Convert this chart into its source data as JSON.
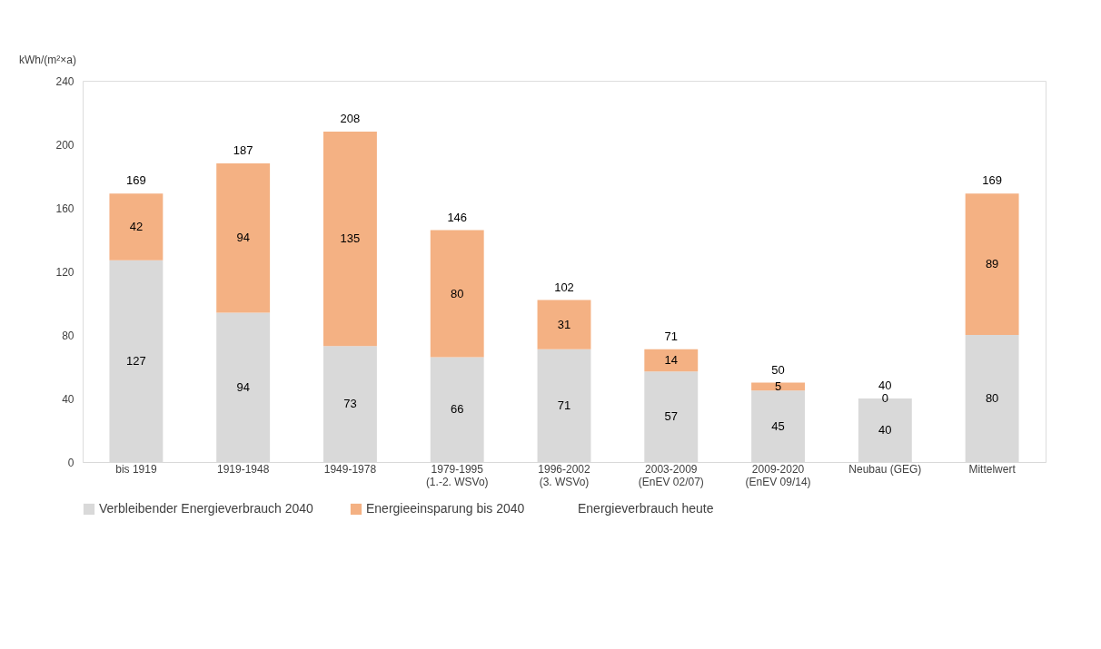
{
  "chart_data": {
    "type": "bar",
    "stacked": true,
    "ylabel": "kWh/(m²×a)",
    "categories": [
      "bis 1919",
      "1919-1948",
      "1949-1978",
      "1979-1995\n(1.-2. WSVo)",
      "1996-2002\n(3. WSVo)",
      "2003-2009\n(EnEV 02/07)",
      "2009-2020\n(EnEV 09/14)",
      "Neubau (GEG)",
      "Mittelwert"
    ],
    "series": [
      {
        "name": "Verbleibender Energieverbrauch 2040",
        "color": "#d9d9d9",
        "values": [
          127,
          94,
          73,
          66,
          71,
          57,
          45,
          40,
          80
        ]
      },
      {
        "name": "Energieeinsparung bis 2040",
        "color": "#f4b183",
        "values": [
          42,
          94,
          135,
          80,
          31,
          14,
          5,
          0,
          89
        ]
      }
    ],
    "totals": [
      "169",
      "187",
      "208",
      "146",
      "102",
      "71",
      "50",
      "40",
      "169"
    ],
    "annotations": [
      "Energieverbrauch heute"
    ],
    "ylim": [
      0,
      240
    ],
    "yticks": [
      0,
      40,
      80,
      120,
      160,
      200,
      240
    ],
    "grid": false,
    "legend": "bottom",
    "data_labels": true
  }
}
